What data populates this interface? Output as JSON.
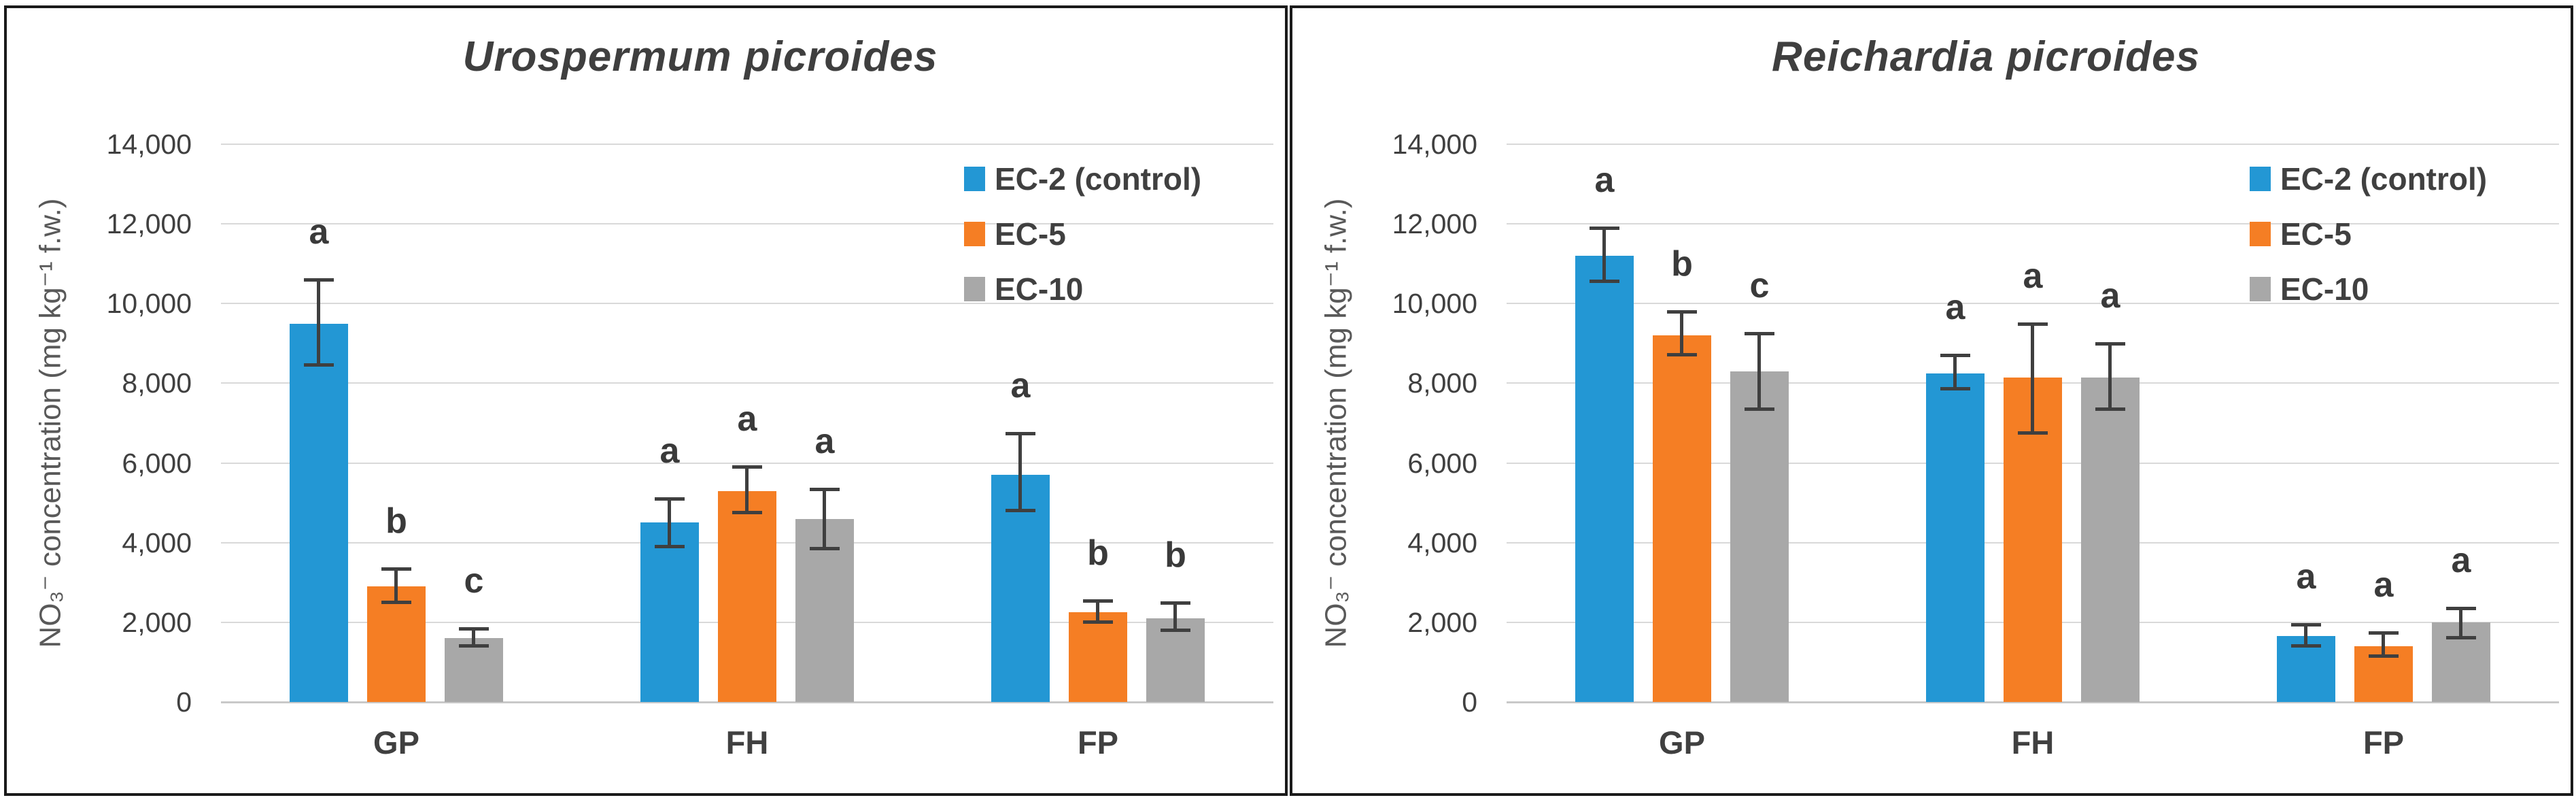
{
  "figure": {
    "y_axis": {
      "title": "NO₃⁻ concentration (mg kg⁻¹ f.w.)",
      "max": 14000,
      "ticks": [
        {
          "value": 0,
          "label": "0"
        },
        {
          "value": 2000,
          "label": "2,000"
        },
        {
          "value": 4000,
          "label": "4,000"
        },
        {
          "value": 6000,
          "label": "6,000"
        },
        {
          "value": 8000,
          "label": "8,000"
        },
        {
          "value": 10000,
          "label": "10,000"
        },
        {
          "value": 12000,
          "label": "12,000"
        },
        {
          "value": 14000,
          "label": "14,000"
        }
      ]
    },
    "legend": [
      {
        "label": "EC-2 (control)",
        "color": "#2397d4"
      },
      {
        "label": "EC-5",
        "color": "#f57e24"
      },
      {
        "label": "EC-10",
        "color": "#a8a8a8"
      }
    ],
    "colors": {
      "gridline": "#d9d9d9",
      "baseline": "#c9c9c9",
      "error_bar": "#3f3f3f",
      "title_text": "#3f3f3f",
      "axis_text": "#404040",
      "axis_title_text": "#595959",
      "panel_border": "#1a1a1a"
    }
  },
  "chart_data": [
    {
      "type": "bar",
      "title": "Urospermum picroides",
      "categories": [
        "GP",
        "FH",
        "FP"
      ],
      "xlabel": "",
      "ylabel": "NO₃⁻ concentration (mg kg⁻¹ f.w.)",
      "ylim": [
        0,
        14000
      ],
      "grid": true,
      "legend_position": "top-right",
      "series": [
        {
          "name": "EC-2 (control)",
          "values": [
            9500,
            4500,
            5700
          ],
          "err_low": [
            8450,
            3900,
            4800
          ],
          "err_high": [
            10600,
            5100,
            6750
          ],
          "letters": [
            "a",
            "a",
            "a"
          ]
        },
        {
          "name": "EC-5",
          "values": [
            2900,
            5300,
            2250
          ],
          "err_low": [
            2500,
            4750,
            2000
          ],
          "err_high": [
            3350,
            5900,
            2550
          ],
          "letters": [
            "b",
            "a",
            "b"
          ]
        },
        {
          "name": "EC-10",
          "values": [
            1600,
            4600,
            2100
          ],
          "err_low": [
            1400,
            3850,
            1800
          ],
          "err_high": [
            1850,
            5350,
            2500
          ],
          "letters": [
            "c",
            "a",
            "b"
          ]
        }
      ]
    },
    {
      "type": "bar",
      "title": "Reichardia picroides",
      "categories": [
        "GP",
        "FH",
        "FP"
      ],
      "xlabel": "",
      "ylabel": "NO₃⁻ concentration (mg kg⁻¹ f.w.)",
      "ylim": [
        0,
        14000
      ],
      "grid": true,
      "legend_position": "top-right",
      "series": [
        {
          "name": "EC-2 (control)",
          "values": [
            11200,
            8250,
            1650
          ],
          "err_low": [
            10550,
            7850,
            1400
          ],
          "err_high": [
            11900,
            8700,
            1950
          ],
          "letters": [
            "a",
            "a",
            "a"
          ]
        },
        {
          "name": "EC-5",
          "values": [
            9200,
            8150,
            1400
          ],
          "err_low": [
            8700,
            6750,
            1150
          ],
          "err_high": [
            9800,
            9500,
            1750
          ],
          "letters": [
            "b",
            "a",
            "a"
          ]
        },
        {
          "name": "EC-10",
          "values": [
            8300,
            8150,
            2000
          ],
          "err_low": [
            7350,
            7350,
            1600
          ],
          "err_high": [
            9250,
            9000,
            2350
          ],
          "letters": [
            "c",
            "a",
            "a"
          ]
        }
      ]
    }
  ]
}
